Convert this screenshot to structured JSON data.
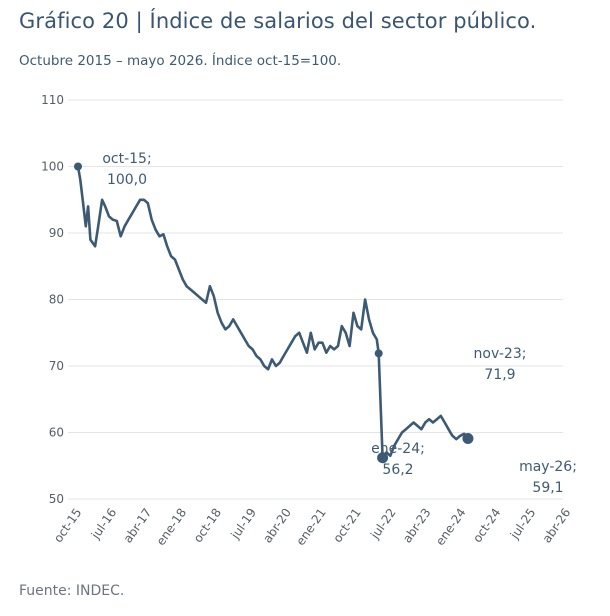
{
  "title": "Gráfico 20 | Índice de salarios del sector público.",
  "subtitle": "Octubre 2015 – mayo 2026. Índice oct-15=100.",
  "source": "Fuente: INDEC.",
  "colors": {
    "line": "#3d5a75",
    "grid": "#e3e5e8",
    "text": "#3f5a74"
  },
  "chart_data": {
    "type": "line",
    "ylim": [
      50,
      110
    ],
    "yticks": [
      50,
      60,
      70,
      80,
      90,
      100,
      110
    ],
    "xlim_month_index": [
      0,
      127
    ],
    "xticks": [
      {
        "label": "oct-15",
        "m": 0
      },
      {
        "label": "jul-16",
        "m": 9
      },
      {
        "label": "abr-17",
        "m": 18
      },
      {
        "label": "ene-18",
        "m": 27
      },
      {
        "label": "oct-18",
        "m": 36
      },
      {
        "label": "jul-19",
        "m": 45
      },
      {
        "label": "abr-20",
        "m": 54
      },
      {
        "label": "ene-21",
        "m": 63
      },
      {
        "label": "oct-21",
        "m": 72
      },
      {
        "label": "jul-22",
        "m": 81
      },
      {
        "label": "abr-23",
        "m": 90
      },
      {
        "label": "ene-24",
        "m": 99
      },
      {
        "label": "oct-24",
        "m": 108
      },
      {
        "label": "jul-25",
        "m": 117
      },
      {
        "label": "abr-26",
        "m": 126
      }
    ],
    "grid": "horizontal",
    "series": [
      {
        "values": [
          100.0,
          98.0,
          95.0,
          91.0,
          94.0,
          89.0,
          88.0,
          91.0,
          95.0,
          94.0,
          92.5,
          92.0,
          91.8,
          89.5,
          91.0,
          92.0,
          93.0,
          94.0,
          95.0,
          95.0,
          94.5,
          92.0,
          90.5,
          89.5,
          89.8,
          88.0,
          86.5,
          86.0,
          84.5,
          83.0,
          82.0,
          81.5,
          81.0,
          80.5,
          80.0,
          79.5,
          82.0,
          80.5,
          78.0,
          76.5,
          75.5,
          76.0,
          77.0,
          76.0,
          75.0,
          74.0,
          73.0,
          72.5,
          71.5,
          71.0,
          70.0,
          69.5,
          71.0,
          70.0,
          70.5,
          71.5,
          72.5,
          73.5,
          74.5,
          75.0,
          73.5,
          72.0,
          75.0,
          72.5,
          73.5,
          73.5,
          72.0,
          73.0,
          72.5,
          73.0,
          76.0,
          75.0,
          73.0,
          78.0,
          76.0,
          75.5,
          80.0,
          77.0,
          75.0,
          74.0,
          71.9,
          56.2,
          57.0,
          56.5,
          58.0,
          59.0,
          60.0,
          60.5,
          61.0,
          61.5,
          61.0,
          60.5,
          61.5,
          62.0,
          61.5,
          62.0,
          62.5,
          61.5,
          60.5,
          59.5,
          59.0,
          59.5,
          59.8,
          59.1
        ],
        "x_month_index": [
          0,
          0.6,
          1.2,
          2,
          2.6,
          3.2,
          4.4,
          5.2,
          6.2,
          7,
          8,
          9,
          10,
          11,
          12,
          13,
          14,
          15,
          16,
          17,
          18,
          19,
          20,
          21,
          22,
          23,
          24,
          25,
          26,
          27,
          28,
          29,
          30,
          31,
          32,
          33,
          34,
          35,
          36,
          37,
          38,
          39,
          40,
          41,
          42,
          43,
          44,
          45,
          46,
          47,
          48,
          49,
          50,
          51,
          52,
          53,
          54,
          55,
          56,
          57,
          58,
          59,
          60,
          61,
          62,
          63,
          64,
          65,
          66,
          67,
          68,
          69,
          70,
          71,
          72,
          73,
          74,
          75,
          76,
          77,
          77.5,
          78.5,
          79.5,
          80.5,
          81.5,
          82.5,
          83.5,
          84.5,
          85.5,
          86.5,
          87.5,
          88.5,
          89.5,
          90.5,
          91.5,
          92.5,
          93.5,
          94.5,
          95.5,
          96.5,
          97.5,
          98.5,
          99.5,
          100.5
        ]
      }
    ],
    "markers": [
      {
        "m": 0,
        "y": 100.0
      },
      {
        "m": 77.5,
        "y": 71.9
      },
      {
        "m": 78.5,
        "y": 56.2
      },
      {
        "m": 100.5,
        "y": 59.1
      }
    ],
    "annotations": [
      {
        "line1": "oct-15;",
        "line2": "100,0"
      },
      {
        "line1": "nov-23;",
        "line2": "71,9"
      },
      {
        "line1": "ene-24;",
        "line2": "56,2"
      },
      {
        "line1": "may-26;",
        "line2": "59,1"
      }
    ]
  }
}
